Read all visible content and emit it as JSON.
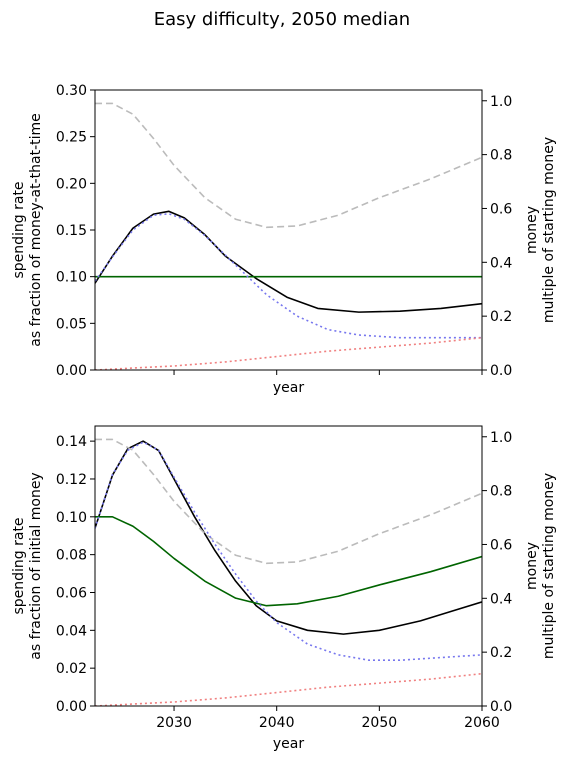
{
  "figure": {
    "title": "Easy difficulty, 2050 median"
  },
  "chart_data": [
    {
      "type": "line",
      "xlabel": "year",
      "ylabel_left": [
        "spending rate",
        "as fraction of money-at-that-time"
      ],
      "ylabel_right": [
        "money",
        "multiple of starting money"
      ],
      "xlim": [
        2022.3,
        2060
      ],
      "ylim_left": [
        0,
        0.3
      ],
      "ylim_right": [
        0,
        1.04
      ],
      "xticks": [
        2030,
        2040,
        2050,
        2060
      ],
      "xtick_labels_visible": false,
      "yticks_left": [
        "0.00",
        "0.05",
        "0.10",
        "0.15",
        "0.20",
        "0.25",
        "0.30"
      ],
      "yticks_right": [
        "0.0",
        "0.2",
        "0.4",
        "0.6",
        "0.8",
        "1.0"
      ],
      "series": [
        {
          "axis": "left",
          "color": "#000000",
          "style": "solid",
          "x": [
            2022.3,
            2024,
            2026,
            2028,
            2029.5,
            2031,
            2033,
            2035,
            2038,
            2041,
            2044,
            2048,
            2052,
            2056,
            2060
          ],
          "y": [
            0.093,
            0.122,
            0.152,
            0.167,
            0.17,
            0.163,
            0.145,
            0.122,
            0.098,
            0.078,
            0.066,
            0.062,
            0.063,
            0.066,
            0.071
          ]
        },
        {
          "axis": "left",
          "color": "#006400",
          "style": "solid",
          "x": [
            2022.3,
            2060
          ],
          "y": [
            0.1,
            0.1
          ]
        },
        {
          "axis": "right",
          "color": "#bbbbbb",
          "style": "dashed",
          "x": [
            2022.3,
            2024,
            2026,
            2028,
            2030,
            2033,
            2036,
            2039,
            2042,
            2046,
            2050,
            2055,
            2060
          ],
          "y": [
            0.99,
            0.99,
            0.95,
            0.86,
            0.76,
            0.64,
            0.56,
            0.53,
            0.535,
            0.575,
            0.64,
            0.71,
            0.79
          ]
        },
        {
          "axis": "right",
          "color": "#7777ee",
          "style": "dotted",
          "x": [
            2022.3,
            2024,
            2026,
            2028,
            2029.5,
            2031,
            2033,
            2036,
            2039,
            2042,
            2045,
            2048,
            2052,
            2056,
            2060
          ],
          "y": [
            0.33,
            0.42,
            0.52,
            0.575,
            0.58,
            0.56,
            0.5,
            0.39,
            0.28,
            0.2,
            0.15,
            0.13,
            0.12,
            0.12,
            0.12
          ]
        },
        {
          "axis": "right",
          "color": "#f08080",
          "style": "dotted",
          "x": [
            2022.3,
            2030,
            2035,
            2040,
            2045,
            2050,
            2055,
            2060
          ],
          "y": [
            0.0,
            0.015,
            0.03,
            0.05,
            0.07,
            0.085,
            0.1,
            0.12
          ]
        }
      ]
    },
    {
      "type": "line",
      "xlabel": "year",
      "ylabel_left": [
        "spending rate",
        "as fraction of initial money"
      ],
      "ylabel_right": [
        "money",
        "multiple of starting money"
      ],
      "xlim": [
        2022.3,
        2060
      ],
      "ylim_left": [
        0,
        0.148
      ],
      "ylim_right": [
        0,
        1.04
      ],
      "xticks": [
        2030,
        2040,
        2050,
        2060
      ],
      "xtick_labels": [
        "2030",
        "2040",
        "2050",
        "2060"
      ],
      "yticks_left": [
        "0.00",
        "0.02",
        "0.04",
        "0.06",
        "0.08",
        "0.10",
        "0.12",
        "0.14"
      ],
      "yticks_right": [
        "0.0",
        "0.2",
        "0.4",
        "0.6",
        "0.8",
        "1.0"
      ],
      "series": [
        {
          "axis": "left",
          "color": "#000000",
          "style": "solid",
          "x": [
            2022.3,
            2024,
            2025.5,
            2027,
            2028.5,
            2030,
            2032,
            2034,
            2036,
            2038,
            2040,
            2043,
            2046.5,
            2050,
            2054,
            2057,
            2060
          ],
          "y": [
            0.094,
            0.122,
            0.136,
            0.14,
            0.135,
            0.12,
            0.1,
            0.082,
            0.066,
            0.053,
            0.045,
            0.04,
            0.038,
            0.04,
            0.045,
            0.05,
            0.055
          ]
        },
        {
          "axis": "left",
          "color": "#006400",
          "style": "solid",
          "x": [
            2022.3,
            2024,
            2026,
            2028,
            2030,
            2033,
            2036,
            2039,
            2042,
            2046,
            2050,
            2055,
            2060
          ],
          "y": [
            0.1,
            0.1,
            0.095,
            0.087,
            0.078,
            0.066,
            0.057,
            0.053,
            0.054,
            0.058,
            0.064,
            0.071,
            0.079
          ]
        },
        {
          "axis": "right",
          "color": "#bbbbbb",
          "style": "dashed",
          "x": [
            2022.3,
            2024,
            2026,
            2028,
            2030,
            2033,
            2036,
            2039,
            2042,
            2046,
            2050,
            2055,
            2060
          ],
          "y": [
            0.99,
            0.99,
            0.95,
            0.86,
            0.76,
            0.64,
            0.56,
            0.53,
            0.535,
            0.575,
            0.64,
            0.71,
            0.79
          ]
        },
        {
          "axis": "right",
          "color": "#7777ee",
          "style": "dotted",
          "x": [
            2022.3,
            2024,
            2025.5,
            2027,
            2028.5,
            2030,
            2032,
            2034,
            2036,
            2038,
            2040,
            2043,
            2046,
            2049,
            2052,
            2056,
            2060
          ],
          "y": [
            0.66,
            0.86,
            0.95,
            0.98,
            0.95,
            0.85,
            0.72,
            0.6,
            0.49,
            0.39,
            0.31,
            0.23,
            0.19,
            0.17,
            0.17,
            0.18,
            0.19
          ]
        },
        {
          "axis": "right",
          "color": "#f08080",
          "style": "dotted",
          "x": [
            2022.3,
            2030,
            2035,
            2040,
            2045,
            2050,
            2055,
            2060
          ],
          "y": [
            0.0,
            0.015,
            0.03,
            0.05,
            0.07,
            0.085,
            0.1,
            0.12
          ]
        }
      ]
    }
  ]
}
